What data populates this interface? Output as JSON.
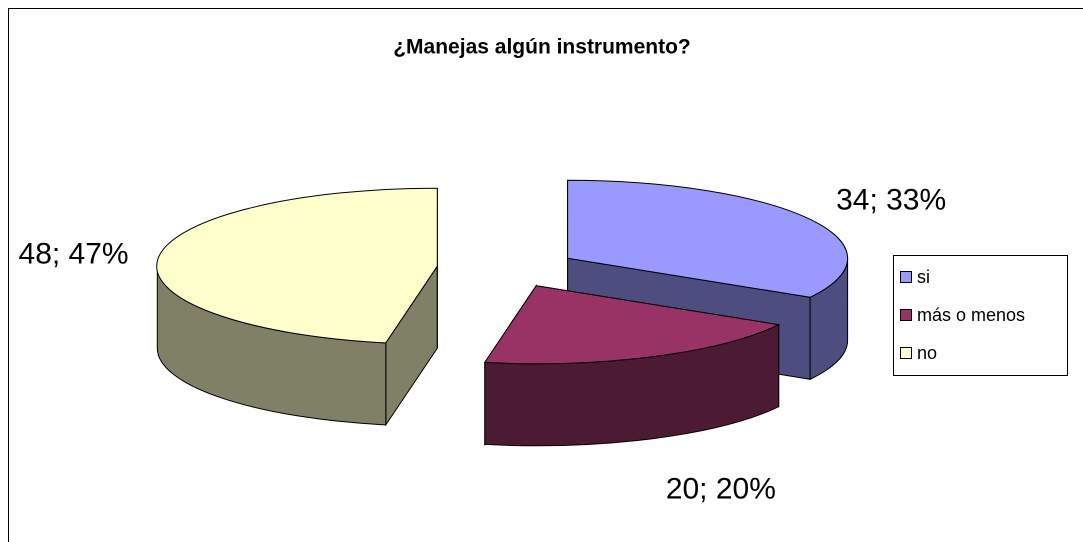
{
  "chart_data": {
    "type": "pie",
    "title": "¿Manejas algún instrumento?",
    "categories": [
      "si",
      "más o menos",
      "no"
    ],
    "values": [
      34,
      20,
      48
    ],
    "value_labels": [
      "34; 33%",
      "20; 20%",
      "48; 47%"
    ],
    "colors": [
      "#9999ff",
      "#993366",
      "#ffffcc"
    ],
    "legend": "right"
  }
}
